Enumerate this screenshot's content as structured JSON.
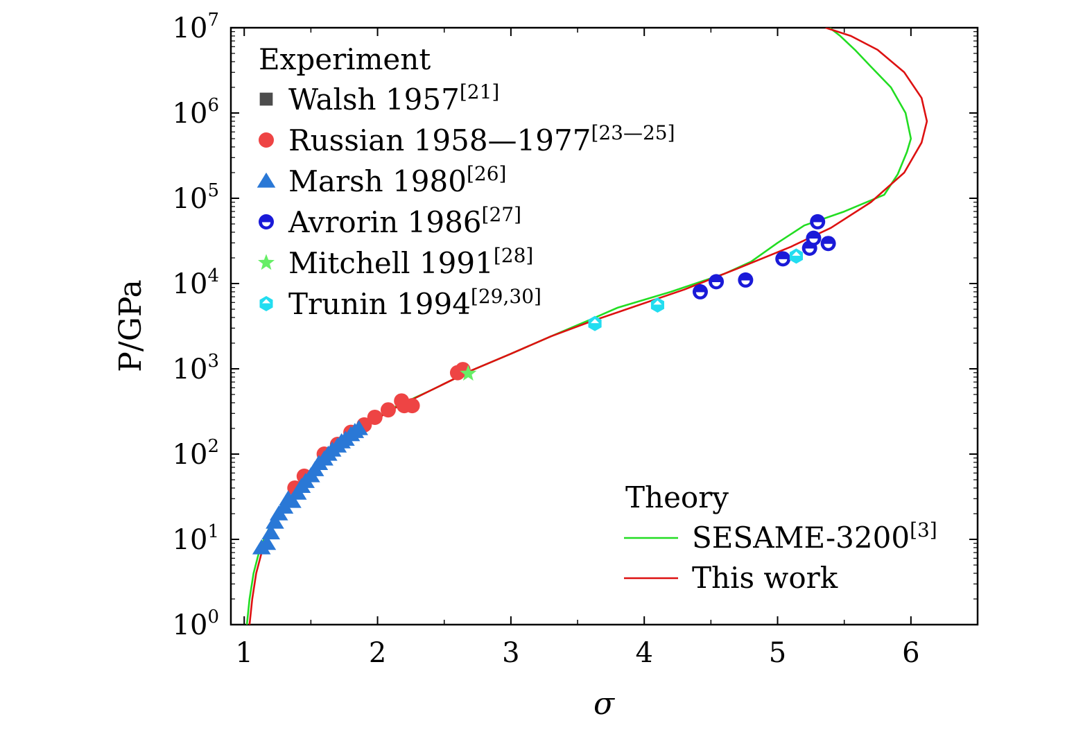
{
  "chart_data": {
    "type": "scatter",
    "xlabel": "σ",
    "ylabel": "P/GPa",
    "xlim": [
      0.9,
      6.5
    ],
    "ylog": true,
    "ylim": [
      1,
      10000000
    ],
    "x_ticks": [
      "1",
      "2",
      "3",
      "4",
      "5",
      "6"
    ],
    "x_tick_values": [
      1,
      2,
      3,
      4,
      5,
      6
    ],
    "y_tick_base": "10",
    "y_tick_exponents": [
      "0",
      "1",
      "2",
      "3",
      "4",
      "5",
      "6",
      "7"
    ],
    "legend_experiment": {
      "title": "Experiment",
      "placement": "top-left",
      "entries": [
        {
          "name": "Walsh 1957",
          "ref": "[21]",
          "marker": "square",
          "color": "#4d4d4d"
        },
        {
          "name": "Russian 1958—1977",
          "ref": "[23—25]",
          "marker": "circle",
          "color": "#ee4444"
        },
        {
          "name": "Marsh 1980",
          "ref": "[26]",
          "marker": "triangle",
          "color": "#2a78d6"
        },
        {
          "name": "Avrorin 1986",
          "ref": "[27]",
          "marker": "half-circle",
          "color": "#1a1ad8"
        },
        {
          "name": "Mitchell 1991",
          "ref": "[28]",
          "marker": "star",
          "color": "#66ee66"
        },
        {
          "name": "Trunin 1994",
          "ref": "[29,30]",
          "marker": "hexagon",
          "color": "#22ddf0"
        }
      ]
    },
    "legend_theory": {
      "title": "Theory",
      "placement": "bottom-right",
      "entries": [
        {
          "name": "SESAME-3200",
          "ref": "[3]",
          "color": "#22dd22"
        },
        {
          "name": "This work",
          "ref": "",
          "color": "#dd1111"
        }
      ]
    },
    "series": [
      {
        "name": "Russian 1958—1977",
        "marker": "circle",
        "color": "#ee4444",
        "points": [
          [
            1.38,
            40
          ],
          [
            1.45,
            55
          ],
          [
            1.6,
            100
          ],
          [
            1.7,
            130
          ],
          [
            1.8,
            180
          ],
          [
            1.9,
            220
          ],
          [
            1.98,
            270
          ],
          [
            2.08,
            330
          ],
          [
            2.18,
            420
          ],
          [
            2.2,
            370
          ],
          [
            2.26,
            370
          ],
          [
            2.6,
            900
          ],
          [
            2.64,
            980
          ]
        ]
      },
      {
        "name": "Marsh 1980",
        "marker": "triangle",
        "color": "#2a78d6",
        "points": [
          [
            1.13,
            8
          ],
          [
            1.17,
            9
          ],
          [
            1.2,
            12
          ],
          [
            1.23,
            16
          ],
          [
            1.26,
            20
          ],
          [
            1.3,
            24
          ],
          [
            1.33,
            30
          ],
          [
            1.36,
            28
          ],
          [
            1.4,
            35
          ],
          [
            1.43,
            42
          ],
          [
            1.46,
            48
          ],
          [
            1.5,
            56
          ],
          [
            1.53,
            66
          ],
          [
            1.56,
            78
          ],
          [
            1.6,
            88
          ],
          [
            1.63,
            100
          ],
          [
            1.66,
            112
          ],
          [
            1.7,
            125
          ],
          [
            1.73,
            140
          ],
          [
            1.76,
            150
          ],
          [
            1.8,
            170
          ],
          [
            1.83,
            185
          ],
          [
            1.86,
            200
          ]
        ]
      },
      {
        "name": "Avrorin 1986",
        "marker": "half-circle",
        "color": "#1a1ad8",
        "points": [
          [
            4.42,
            8000
          ],
          [
            4.54,
            10500
          ],
          [
            4.76,
            11000
          ],
          [
            5.04,
            19500
          ],
          [
            5.24,
            26000
          ],
          [
            5.27,
            34000
          ],
          [
            5.3,
            53000
          ],
          [
            5.38,
            29500
          ]
        ]
      },
      {
        "name": "Mitchell 1991",
        "marker": "star",
        "color": "#66ee66",
        "points": [
          [
            2.68,
            880
          ]
        ]
      },
      {
        "name": "Trunin 1994",
        "marker": "hexagon",
        "color": "#22ddf0",
        "points": [
          [
            3.63,
            3400
          ],
          [
            4.1,
            5600
          ],
          [
            5.14,
            21000
          ]
        ]
      },
      {
        "name": "SESAME-3200",
        "type": "line",
        "color": "#22dd22",
        "points": [
          [
            1.02,
            1
          ],
          [
            1.04,
            2
          ],
          [
            1.07,
            4
          ],
          [
            1.12,
            8
          ],
          [
            1.2,
            15
          ],
          [
            1.35,
            32
          ],
          [
            1.5,
            60
          ],
          [
            1.7,
            120
          ],
          [
            1.9,
            220
          ],
          [
            2.1,
            340
          ],
          [
            2.4,
            560
          ],
          [
            2.7,
            950
          ],
          [
            3.0,
            1500
          ],
          [
            3.3,
            2400
          ],
          [
            3.6,
            3800
          ],
          [
            3.8,
            5200
          ],
          [
            4.2,
            8000
          ],
          [
            4.6,
            13000
          ],
          [
            4.8,
            18000
          ],
          [
            5.0,
            30000
          ],
          [
            5.2,
            48000
          ],
          [
            5.5,
            70000
          ],
          [
            5.8,
            110000
          ],
          [
            5.9,
            190000
          ],
          [
            5.97,
            350000
          ],
          [
            6.0,
            500000
          ],
          [
            5.96,
            1000000
          ],
          [
            5.85,
            2000000
          ],
          [
            5.7,
            3500000
          ],
          [
            5.58,
            5500000
          ],
          [
            5.47,
            8000000
          ],
          [
            5.39,
            10000000
          ]
        ]
      },
      {
        "name": "This work",
        "type": "line",
        "color": "#dd1111",
        "points": [
          [
            1.04,
            1
          ],
          [
            1.06,
            2
          ],
          [
            1.09,
            4
          ],
          [
            1.14,
            8
          ],
          [
            1.22,
            15
          ],
          [
            1.37,
            32
          ],
          [
            1.52,
            60
          ],
          [
            1.72,
            120
          ],
          [
            1.92,
            220
          ],
          [
            2.12,
            340
          ],
          [
            2.4,
            560
          ],
          [
            2.7,
            950
          ],
          [
            3.0,
            1500
          ],
          [
            3.3,
            2400
          ],
          [
            3.6,
            3600
          ],
          [
            3.9,
            5200
          ],
          [
            4.3,
            8500
          ],
          [
            4.7,
            15000
          ],
          [
            5.1,
            27000
          ],
          [
            5.4,
            45000
          ],
          [
            5.7,
            90000
          ],
          [
            5.95,
            200000
          ],
          [
            6.08,
            450000
          ],
          [
            6.12,
            800000
          ],
          [
            6.08,
            1500000
          ],
          [
            5.95,
            3000000
          ],
          [
            5.75,
            5500000
          ],
          [
            5.55,
            8000000
          ],
          [
            5.36,
            10000000
          ]
        ]
      }
    ]
  }
}
